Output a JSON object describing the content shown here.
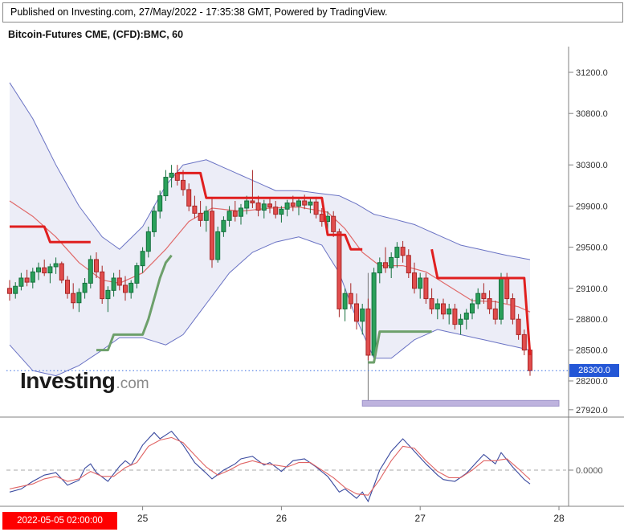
{
  "header": {
    "published": "Published on Investing.com, 27/May/2022 - 17:35:38 GMT, Powered by TradingView."
  },
  "title": "Bitcoin-Futures CME, (CFD):BMC, 60",
  "watermark": {
    "name": "Investing",
    "tld": ".com"
  },
  "axes": {
    "price_ticks": [
      31200.0,
      30800.0,
      30300.0,
      29900.0,
      29500.0,
      29100.0,
      28800.0,
      28500.0,
      28200.0,
      27920.0
    ],
    "time_ticks": [
      {
        "label": "25",
        "bar": 23
      },
      {
        "label": "26",
        "bar": 47
      },
      {
        "label": "27",
        "bar": 71
      },
      {
        "label": "28",
        "bar": 95
      }
    ],
    "current_price_label": "28300.0",
    "time_badge": "2022-05-05 02:00:00",
    "osc_zero_label": "0.0000"
  },
  "colors": {
    "up_fill": "#2aa05a",
    "up_border": "#156f3d",
    "down_fill": "#e14d4d",
    "down_border": "#a82626",
    "bb_line": "#6a73c4",
    "bb_fill": "rgba(106,115,196,0.13)",
    "st_red": "#e01f1f",
    "st_green": "#6da06b",
    "basis": "#e06a6a",
    "osc_blue": "#3a4a9f",
    "osc_red": "#e06464",
    "zone": "#b3a6d9",
    "zone_border": "#8d7fc0",
    "dotted_line": "#3b6fe0",
    "axis_line": "#808080",
    "axis_text": "#333333",
    "badge_blue": "#2457d6",
    "badge_red": "#fe0000",
    "annotation_line": "#777777"
  },
  "chart_data": {
    "type": "candlestick",
    "title": "Bitcoin-Futures CME, (CFD):BMC, 60",
    "interval_minutes": 60,
    "ylim": [
      27850,
      31450
    ],
    "current_price": 28300,
    "candles": [
      [
        29100,
        29180,
        28980,
        29050
      ],
      [
        29050,
        29160,
        29000,
        29120
      ],
      [
        29120,
        29250,
        29080,
        29200
      ],
      [
        29200,
        29280,
        29120,
        29160
      ],
      [
        29160,
        29300,
        29100,
        29260
      ],
      [
        29260,
        29350,
        29180,
        29300
      ],
      [
        29300,
        29380,
        29220,
        29250
      ],
      [
        29250,
        29340,
        29150,
        29310
      ],
      [
        29310,
        29400,
        29240,
        29340
      ],
      [
        29340,
        29360,
        29150,
        29180
      ],
      [
        29180,
        29220,
        29000,
        29050
      ],
      [
        29050,
        29150,
        28900,
        28960
      ],
      [
        28960,
        29100,
        28870,
        29060
      ],
      [
        29060,
        29200,
        29000,
        29150
      ],
      [
        29150,
        29420,
        29100,
        29380
      ],
      [
        29380,
        29450,
        29200,
        29260
      ],
      [
        29260,
        29320,
        28950,
        29000
      ],
      [
        29000,
        29120,
        28870,
        29080
      ],
      [
        29080,
        29250,
        29020,
        29200
      ],
      [
        29200,
        29280,
        29080,
        29130
      ],
      [
        29130,
        29220,
        28980,
        29060
      ],
      [
        29060,
        29180,
        29000,
        29150
      ],
      [
        29150,
        29350,
        29100,
        29320
      ],
      [
        29320,
        29500,
        29250,
        29460
      ],
      [
        29460,
        29700,
        29400,
        29650
      ],
      [
        29650,
        29900,
        29600,
        29850
      ],
      [
        29850,
        30050,
        29780,
        30000
      ],
      [
        30000,
        30250,
        29950,
        30180
      ],
      [
        30180,
        30300,
        30080,
        30220
      ],
      [
        30220,
        30300,
        30100,
        30150
      ],
      [
        30150,
        30250,
        30000,
        30060
      ],
      [
        30060,
        30120,
        29850,
        29900
      ],
      [
        29900,
        30000,
        29780,
        29830
      ],
      [
        29830,
        29950,
        29700,
        29760
      ],
      [
        29760,
        29900,
        29650,
        29850
      ],
      [
        29850,
        29980,
        29300,
        29380
      ],
      [
        29380,
        29700,
        29350,
        29650
      ],
      [
        29650,
        29800,
        29600,
        29760
      ],
      [
        29760,
        29900,
        29700,
        29850
      ],
      [
        29850,
        29950,
        29750,
        29800
      ],
      [
        29800,
        29920,
        29720,
        29880
      ],
      [
        29880,
        30000,
        29820,
        29950
      ],
      [
        29950,
        30250,
        29880,
        29930
      ],
      [
        29930,
        30000,
        29800,
        29860
      ],
      [
        29860,
        29960,
        29780,
        29920
      ],
      [
        29920,
        29980,
        29830,
        29890
      ],
      [
        29890,
        29950,
        29780,
        29820
      ],
      [
        29820,
        29900,
        29740,
        29870
      ],
      [
        29870,
        29960,
        29800,
        29930
      ],
      [
        29930,
        30000,
        29850,
        29900
      ],
      [
        29900,
        29970,
        29810,
        29950
      ],
      [
        29950,
        30010,
        29870,
        29910
      ],
      [
        29910,
        29980,
        29830,
        29940
      ],
      [
        29940,
        29990,
        29780,
        29820
      ],
      [
        29820,
        29880,
        29700,
        29750
      ],
      [
        29750,
        29850,
        29650,
        29800
      ],
      [
        29800,
        29850,
        29600,
        29650
      ],
      [
        29650,
        29680,
        28820,
        28900
      ],
      [
        28900,
        29100,
        28780,
        29050
      ],
      [
        29050,
        29150,
        28900,
        28950
      ],
      [
        28950,
        29050,
        28700,
        28780
      ],
      [
        28780,
        28950,
        28650,
        28900
      ],
      [
        28900,
        29000,
        28400,
        28450
      ],
      [
        28450,
        29300,
        28400,
        29250
      ],
      [
        29250,
        29400,
        29150,
        29350
      ],
      [
        29350,
        29500,
        29250,
        29300
      ],
      [
        29300,
        29450,
        29200,
        29400
      ],
      [
        29400,
        29550,
        29300,
        29500
      ],
      [
        29500,
        29560,
        29350,
        29420
      ],
      [
        29420,
        29480,
        29200,
        29250
      ],
      [
        29250,
        29350,
        29050,
        29100
      ],
      [
        29100,
        29250,
        29000,
        29200
      ],
      [
        29200,
        29250,
        28950,
        29000
      ],
      [
        29000,
        29100,
        28850,
        28900
      ],
      [
        28900,
        29000,
        28800,
        28950
      ],
      [
        28950,
        29000,
        28800,
        28850
      ],
      [
        28850,
        28950,
        28750,
        28900
      ],
      [
        28900,
        28950,
        28700,
        28750
      ],
      [
        28750,
        28850,
        28650,
        28800
      ],
      [
        28800,
        28900,
        28700,
        28860
      ],
      [
        28860,
        29000,
        28800,
        28950
      ],
      [
        28950,
        29100,
        28900,
        29050
      ],
      [
        29050,
        29150,
        28950,
        29000
      ],
      [
        29000,
        29080,
        28850,
        28900
      ],
      [
        28900,
        28980,
        28750,
        28800
      ],
      [
        28800,
        29250,
        28750,
        29200
      ],
      [
        29200,
        29250,
        28950,
        29000
      ],
      [
        29000,
        29050,
        28750,
        28800
      ],
      [
        28800,
        28850,
        28600,
        28650
      ],
      [
        28650,
        28700,
        28450,
        28500
      ],
      [
        28500,
        28550,
        28250,
        28300
      ]
    ],
    "bollinger": {
      "control_points": [
        [
          0,
          31100,
          28550
        ],
        [
          4,
          30750,
          28300
        ],
        [
          8,
          30300,
          28250
        ],
        [
          12,
          29900,
          28350
        ],
        [
          16,
          29600,
          28500
        ],
        [
          19,
          29480,
          28620
        ],
        [
          23,
          29700,
          28620
        ],
        [
          27,
          30100,
          28550
        ],
        [
          30,
          30300,
          28650
        ],
        [
          34,
          30350,
          28950
        ],
        [
          38,
          30250,
          29250
        ],
        [
          42,
          30150,
          29450
        ],
        [
          46,
          30050,
          29550
        ],
        [
          50,
          30050,
          29600
        ],
        [
          54,
          30020,
          29520
        ],
        [
          57,
          30000,
          29250
        ],
        [
          60,
          29920,
          28800
        ],
        [
          63,
          29820,
          28420
        ],
        [
          66,
          29780,
          28420
        ],
        [
          70,
          29720,
          28600
        ],
        [
          74,
          29620,
          28700
        ],
        [
          78,
          29520,
          28650
        ],
        [
          82,
          29470,
          28600
        ],
        [
          86,
          29420,
          28550
        ],
        [
          90,
          29380,
          28500
        ]
      ]
    },
    "basis": [
      [
        0,
        29950
      ],
      [
        4,
        29800
      ],
      [
        8,
        29600
      ],
      [
        12,
        29350
      ],
      [
        16,
        29180
      ],
      [
        19,
        29150
      ],
      [
        23,
        29250
      ],
      [
        27,
        29480
      ],
      [
        31,
        29750
      ],
      [
        35,
        29880
      ],
      [
        40,
        29850
      ],
      [
        45,
        29880
      ],
      [
        50,
        29890
      ],
      [
        55,
        29840
      ],
      [
        58,
        29680
      ],
      [
        61,
        29450
      ],
      [
        64,
        29320
      ],
      [
        68,
        29320
      ],
      [
        72,
        29260
      ],
      [
        76,
        29120
      ],
      [
        80,
        28980
      ],
      [
        84,
        28970
      ],
      [
        88,
        28920
      ],
      [
        90,
        28870
      ]
    ],
    "supertrend_segments": [
      {
        "color": "red",
        "points": [
          [
            0,
            29700
          ],
          [
            6,
            29700
          ],
          [
            7,
            29550
          ],
          [
            14,
            29550
          ]
        ]
      },
      {
        "color": "green",
        "points": [
          [
            15,
            28500
          ],
          [
            17,
            28500
          ],
          [
            18,
            28650
          ],
          [
            23,
            28650
          ],
          [
            24,
            28800
          ],
          [
            25,
            29000
          ],
          [
            26,
            29200
          ],
          [
            27,
            29350
          ],
          [
            28,
            29420
          ]
        ]
      },
      {
        "color": "red",
        "points": [
          [
            29,
            30220
          ],
          [
            33,
            30220
          ],
          [
            34,
            29980
          ],
          [
            54,
            29980
          ],
          [
            55,
            29620
          ],
          [
            58,
            29620
          ],
          [
            59,
            29480
          ],
          [
            61,
            29480
          ]
        ]
      },
      {
        "color": "green",
        "points": [
          [
            62,
            28380
          ],
          [
            63,
            28380
          ],
          [
            64,
            28680
          ],
          [
            73,
            28680
          ]
        ]
      },
      {
        "color": "red",
        "points": [
          [
            73,
            29480
          ],
          [
            74,
            29200
          ],
          [
            89,
            29200
          ],
          [
            90,
            28450
          ]
        ]
      }
    ],
    "oscillator": {
      "blue": [
        [
          0,
          -35
        ],
        [
          2,
          -30
        ],
        [
          4,
          -18
        ],
        [
          6,
          -8
        ],
        [
          8,
          -4
        ],
        [
          9,
          -14
        ],
        [
          10,
          -24
        ],
        [
          12,
          -16
        ],
        [
          13,
          3
        ],
        [
          14,
          10
        ],
        [
          15,
          -4
        ],
        [
          17,
          -18
        ],
        [
          19,
          6
        ],
        [
          20,
          15
        ],
        [
          21,
          8
        ],
        [
          23,
          40
        ],
        [
          25,
          60
        ],
        [
          26,
          50
        ],
        [
          28,
          62
        ],
        [
          30,
          40
        ],
        [
          32,
          12
        ],
        [
          34,
          -5
        ],
        [
          35,
          -14
        ],
        [
          37,
          0
        ],
        [
          39,
          10
        ],
        [
          40,
          18
        ],
        [
          42,
          22
        ],
        [
          44,
          8
        ],
        [
          45,
          12
        ],
        [
          47,
          -2
        ],
        [
          49,
          15
        ],
        [
          51,
          18
        ],
        [
          53,
          5
        ],
        [
          55,
          -10
        ],
        [
          57,
          -35
        ],
        [
          58,
          -30
        ],
        [
          60,
          -45
        ],
        [
          61,
          -35
        ],
        [
          62,
          -50
        ],
        [
          64,
          0
        ],
        [
          66,
          30
        ],
        [
          68,
          50
        ],
        [
          70,
          30
        ],
        [
          72,
          10
        ],
        [
          74,
          -8
        ],
        [
          75,
          -15
        ],
        [
          77,
          -18
        ],
        [
          79,
          -5
        ],
        [
          81,
          15
        ],
        [
          82,
          25
        ],
        [
          84,
          10
        ],
        [
          85,
          28
        ],
        [
          87,
          5
        ],
        [
          89,
          -15
        ],
        [
          90,
          -22
        ]
      ],
      "red": [
        [
          0,
          -30
        ],
        [
          4,
          -22
        ],
        [
          6,
          -14
        ],
        [
          8,
          -10
        ],
        [
          10,
          -18
        ],
        [
          12,
          -14
        ],
        [
          14,
          -2
        ],
        [
          16,
          -10
        ],
        [
          18,
          -10
        ],
        [
          20,
          4
        ],
        [
          22,
          12
        ],
        [
          24,
          38
        ],
        [
          26,
          48
        ],
        [
          28,
          52
        ],
        [
          30,
          44
        ],
        [
          32,
          24
        ],
        [
          34,
          5
        ],
        [
          36,
          -8
        ],
        [
          38,
          0
        ],
        [
          40,
          10
        ],
        [
          42,
          15
        ],
        [
          44,
          10
        ],
        [
          46,
          8
        ],
        [
          48,
          5
        ],
        [
          50,
          12
        ],
        [
          52,
          12
        ],
        [
          54,
          0
        ],
        [
          56,
          -12
        ],
        [
          58,
          -28
        ],
        [
          60,
          -38
        ],
        [
          62,
          -40
        ],
        [
          64,
          -15
        ],
        [
          66,
          15
        ],
        [
          68,
          38
        ],
        [
          70,
          35
        ],
        [
          72,
          15
        ],
        [
          74,
          -2
        ],
        [
          76,
          -12
        ],
        [
          78,
          -12
        ],
        [
          80,
          0
        ],
        [
          82,
          15
        ],
        [
          84,
          15
        ],
        [
          86,
          18
        ],
        [
          88,
          2
        ],
        [
          90,
          -15
        ]
      ]
    },
    "annotations": {
      "vline": {
        "bar": 62,
        "from": 29250,
        "to": 28010
      },
      "zone": {
        "from_bar": 61,
        "to_bar": 95,
        "top": 28010,
        "bottom": 27955
      }
    }
  }
}
